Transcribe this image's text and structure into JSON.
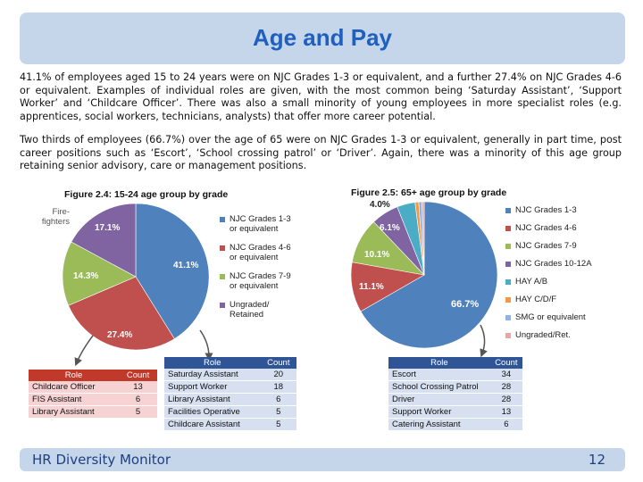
{
  "slide": {
    "title": "Age and Pay"
  },
  "paragraphs": [
    "41.1% of employees aged 15 to 24 years were on NJC Grades 1-3 or equivalent, and a further 27.4% on NJC Grades 4-6 or equivalent. Examples of individual roles are given, with the most common being ‘Saturday Assistant’, ‘Support Worker’ and ‘Childcare Officer’. There was also a small minority of young employees in more specialist roles (e.g. apprentices, social workers, technicians, analysts) that offer more career potential.",
    "Two thirds of employees (66.7%) over the age of 65 were on NJC Grades 1-3 or equivalent, generally in part time, post career positions such as ‘Escort’, ‘School crossing patrol’ or ‘Driver’. Again, there was a minority of this age group retaining senior advisory, care or management positions."
  ],
  "chart_data": [
    {
      "type": "pie",
      "title": "Figure 2.4: 15-24 age group by grade",
      "slices": [
        {
          "label": "NJC Grades 1-3 or equivalent",
          "value": 41.1,
          "color": "#4f81bd"
        },
        {
          "label": "NJC Grades 4-6 or equivalent",
          "value": 27.4,
          "color": "#c0504d"
        },
        {
          "label": "NJC Grades 7-9 or equivalent",
          "value": 14.3,
          "color": "#9bbb59"
        },
        {
          "label": "Ungraded/ Retained",
          "value": 17.1,
          "color": "#8064a2"
        }
      ],
      "annotation": "Fire-fighters",
      "legend_position": "right"
    },
    {
      "type": "pie",
      "title": "Figure 2.5: 65+ age group by grade",
      "slices": [
        {
          "label": "NJC Grades 1-3",
          "value": 66.7,
          "color": "#4f81bd",
          "shown": "66.7%"
        },
        {
          "label": "NJC Grades 4-6",
          "value": 11.1,
          "color": "#c0504d",
          "shown": "11.1%"
        },
        {
          "label": "NJC Grades 7-9",
          "value": 10.1,
          "color": "#9bbb59",
          "shown": "10.1%"
        },
        {
          "label": "NJC Grades 10-12A",
          "value": 6.1,
          "color": "#8064a2",
          "shown": "6.1%"
        },
        {
          "label": "HAY A/B",
          "value": 4.0,
          "color": "#4bacc6",
          "shown": "4.0%"
        },
        {
          "label": "HAY C/D/F",
          "value": 0.8,
          "color": "#f79646",
          "shown": ""
        },
        {
          "label": "SMG or equivalent",
          "value": 0.7,
          "color": "#8fb4e3",
          "shown": ""
        },
        {
          "label": "Ungraded/Ret.",
          "value": 0.5,
          "color": "#e6a7a6",
          "shown": ""
        }
      ],
      "legend_position": "right"
    }
  ],
  "tables": {
    "young_red": {
      "headers": [
        "Role",
        "Count"
      ],
      "rows": [
        [
          "Childcare Officer",
          "13"
        ],
        [
          "FIS Assistant",
          "6"
        ],
        [
          "Library Assistant",
          "5"
        ]
      ]
    },
    "young_blue": {
      "headers": [
        "Role",
        "Count"
      ],
      "rows": [
        [
          "Saturday Assistant",
          "20"
        ],
        [
          "Support Worker",
          "18"
        ],
        [
          "Library Assistant",
          "6"
        ],
        [
          "Facilities Operative",
          "5"
        ],
        [
          "Childcare Assistant",
          "5"
        ]
      ]
    },
    "old_blue": {
      "headers": [
        "Role",
        "Count"
      ],
      "rows": [
        [
          "Escort",
          "34"
        ],
        [
          "School Crossing Patrol",
          "28"
        ],
        [
          "Driver",
          "28"
        ],
        [
          "Support Worker",
          "13"
        ],
        [
          "Catering Assistant",
          "6"
        ]
      ]
    }
  },
  "footer": {
    "left": "HR Diversity Monitor",
    "page": "12"
  }
}
